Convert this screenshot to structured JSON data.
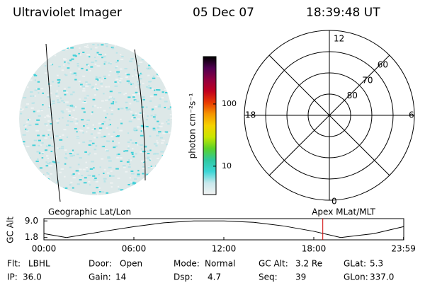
{
  "header": {
    "title": "Ultraviolet Imager",
    "date": "05 Dec 07",
    "time": "18:39:48 UT"
  },
  "colorbar": {
    "label": "photon cm⁻²s⁻¹",
    "log": true,
    "ylim": [
      3.5,
      577
    ],
    "yticks": [
      10,
      100
    ],
    "colors": [
      "#f2f2f2",
      "#c8e8ec",
      "#3cd6d6",
      "#2fc8a0",
      "#5ad22a",
      "#c8e600",
      "#f5d200",
      "#f59600",
      "#e83a00",
      "#c00020",
      "#900040",
      "#500050",
      "#000000"
    ]
  },
  "polar": {
    "labels": {
      "top": "12",
      "right": "6",
      "bottom": "0",
      "left": "18"
    },
    "rlim": [
      90,
      50
    ],
    "rticks": [
      80,
      70,
      60
    ]
  },
  "alt_plot": {
    "left_label": "Geographic Lat/Lon",
    "right_label": "Apex MLat/MLT",
    "ylabel": "GC Alt",
    "xlim": [
      0,
      24
    ],
    "xticks": [
      {
        "value": 0,
        "label": "00:00"
      },
      {
        "value": 6,
        "label": "06:00"
      },
      {
        "value": 12,
        "label": "12:00"
      },
      {
        "value": 18,
        "label": "18:00"
      },
      {
        "value": 23.983,
        "label": "23:59"
      }
    ],
    "ylim": [
      0.8,
      10
    ],
    "yticks": [
      {
        "value": 9,
        "label": "9.0"
      },
      1.8
    ],
    "x": [
      0,
      1.5,
      4,
      6,
      8,
      10,
      12,
      14,
      16,
      18,
      19.8,
      22,
      23.983
    ],
    "values": [
      3.5,
      1.8,
      4.5,
      6.5,
      8.2,
      9.0,
      9.0,
      8.4,
      6.8,
      4.5,
      1.8,
      3.5,
      6.5
    ],
    "marker": 18.6,
    "marker_color": "#d00000"
  },
  "info": [
    [
      {
        "label": "Flt:",
        "value": "LBHL"
      },
      {
        "label": "Door:",
        "value": "Open"
      },
      {
        "label": "Mode:",
        "value": "Normal"
      },
      {
        "label": "GC Alt:",
        "value": "3.2 Re"
      },
      {
        "label": "GLat:",
        "value": "5.3"
      }
    ],
    [
      {
        "label": "IP:",
        "value": "36.0"
      },
      {
        "label": "Gain:",
        "value": "14"
      },
      {
        "label": "Dsp:",
        "value": "4.7"
      },
      {
        "label": "Seq:",
        "value": "39"
      },
      {
        "label": "GLon:",
        "value": "337.0"
      }
    ]
  ]
}
